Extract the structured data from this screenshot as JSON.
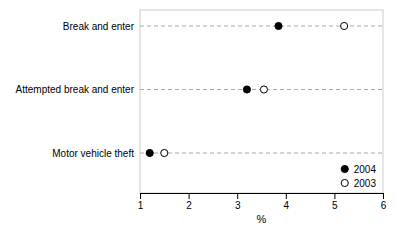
{
  "chart_data": {
    "type": "dot",
    "orientation": "horizontal",
    "categories": [
      "Break and enter",
      "Attempted break and enter",
      "Motor vehicle theft"
    ],
    "series": [
      {
        "name": "2004",
        "color": "#000000",
        "marker": "circle",
        "values": [
          3.85,
          3.2,
          1.2
        ]
      },
      {
        "name": "2003",
        "color": "#ffffff",
        "marker": "circle",
        "values": [
          5.2,
          3.55,
          1.5
        ]
      }
    ],
    "xlabel": "%",
    "xlim": [
      1,
      6
    ],
    "xticks": [
      1,
      2,
      3,
      4,
      5,
      6
    ],
    "grid": true,
    "legend": "lower right"
  }
}
